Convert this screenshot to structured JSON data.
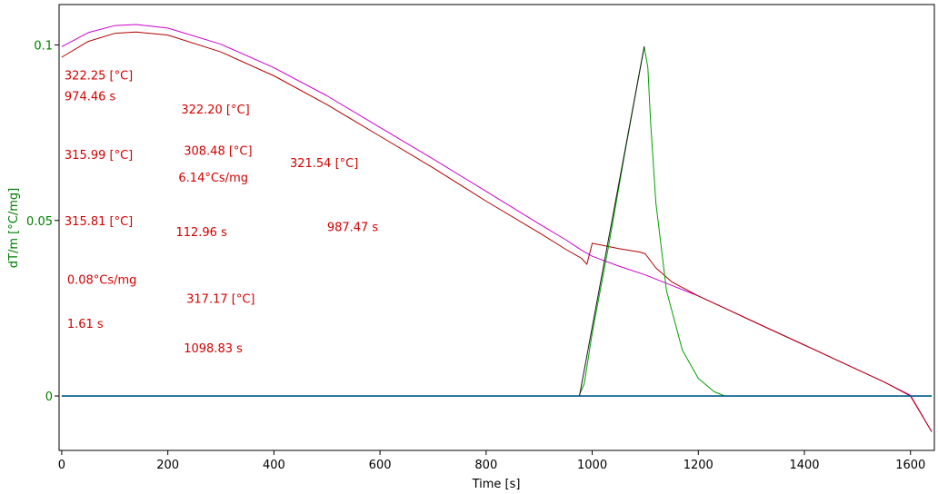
{
  "chart_data": {
    "type": "line",
    "title": "",
    "xlabel": "Time [s]",
    "ylabel": "dT/m  [°C/mg]",
    "xlim": [
      -5,
      1645
    ],
    "ylim": [
      -0.0155,
      0.1115
    ],
    "x_ticks": [
      0,
      200,
      400,
      600,
      800,
      1000,
      1200,
      1400,
      1600
    ],
    "y_ticks": [
      0,
      0.05,
      0.1
    ],
    "y_tick_labels": [
      "0",
      "0.05",
      "0.1"
    ],
    "ylabel_color": "#008000",
    "grid": false,
    "legend": "none",
    "series": [
      {
        "color": "#cc00cc",
        "x": [
          0,
          50,
          100,
          140,
          200,
          300,
          400,
          500,
          600,
          700,
          800,
          900,
          950,
          980,
          1000,
          1050,
          1100,
          1150,
          1200,
          1250,
          1300,
          1400,
          1500,
          1550,
          1600,
          1640
        ],
        "y": [
          0.0995,
          0.1035,
          0.1055,
          0.1058,
          0.1048,
          0.1002,
          0.0935,
          0.0855,
          0.0765,
          0.0675,
          0.0583,
          0.049,
          0.0445,
          0.0415,
          0.0398,
          0.037,
          0.0345,
          0.0315,
          0.0285,
          0.025,
          0.0215,
          0.0145,
          0.0075,
          0.004,
          0.0002,
          -0.0102
        ]
      },
      {
        "color": "#b00000",
        "x": [
          0,
          50,
          100,
          140,
          200,
          300,
          400,
          500,
          600,
          700,
          800,
          900,
          950,
          980,
          990,
          1000,
          1050,
          1090,
          1100,
          1120,
          1150,
          1200,
          1250,
          1300,
          1400,
          1500,
          1550,
          1600,
          1640
        ],
        "y": [
          0.0965,
          0.101,
          0.1033,
          0.1037,
          0.1028,
          0.098,
          0.0912,
          0.083,
          0.074,
          0.065,
          0.0555,
          0.0465,
          0.0418,
          0.0392,
          0.0375,
          0.0435,
          0.042,
          0.041,
          0.0405,
          0.0365,
          0.0325,
          0.0285,
          0.025,
          0.0215,
          0.0145,
          0.0075,
          0.004,
          0.0,
          -0.0102
        ]
      },
      {
        "color": "#00a000",
        "x": [
          0,
          975,
          985,
          1000,
          1030,
          1060,
          1090,
          1098,
          1105,
          1110,
          1120,
          1140,
          1170,
          1200,
          1230,
          1250,
          1640
        ],
        "y": [
          0,
          0,
          0.0035,
          0.018,
          0.042,
          0.068,
          0.093,
          0.0995,
          0.0935,
          0.078,
          0.055,
          0.03,
          0.013,
          0.005,
          0.0012,
          0,
          0
        ]
      },
      {
        "color": "#1a1a1a",
        "x": [
          976,
          1098
        ],
        "y": [
          0,
          0.0995
        ]
      },
      {
        "color": "#005a8c",
        "x": [
          0,
          1640
        ],
        "y": [
          0,
          0
        ]
      }
    ],
    "annotations": [
      {
        "text": "322.25 [°C]",
        "x": 0,
        "y": 0.0915
      },
      {
        "text": "974.46 s",
        "x": 0,
        "y": 0.0855
      },
      {
        "text": "322.20 [°C]",
        "x": 220,
        "y": 0.0818
      },
      {
        "text": "315.99 [°C]",
        "x": 0,
        "y": 0.0688
      },
      {
        "text": "308.48 [°C]",
        "x": 225,
        "y": 0.07
      },
      {
        "text": "321.54 [°C]",
        "x": 425,
        "y": 0.0665
      },
      {
        "text": "6.14°Cs/mg",
        "x": 215,
        "y": 0.0623
      },
      {
        "text": "315.81 [°C]",
        "x": 0,
        "y": 0.05
      },
      {
        "text": "112.96 s",
        "x": 210,
        "y": 0.0468
      },
      {
        "text": "987.47 s",
        "x": 495,
        "y": 0.0483
      },
      {
        "text": "0.08°Cs/mg",
        "x": 5,
        "y": 0.0333
      },
      {
        "text": "317.17 [°C]",
        "x": 230,
        "y": 0.0278
      },
      {
        "text": "1.61 s",
        "x": 5,
        "y": 0.0207
      },
      {
        "text": "1098.83 s",
        "x": 225,
        "y": 0.0137
      }
    ]
  }
}
